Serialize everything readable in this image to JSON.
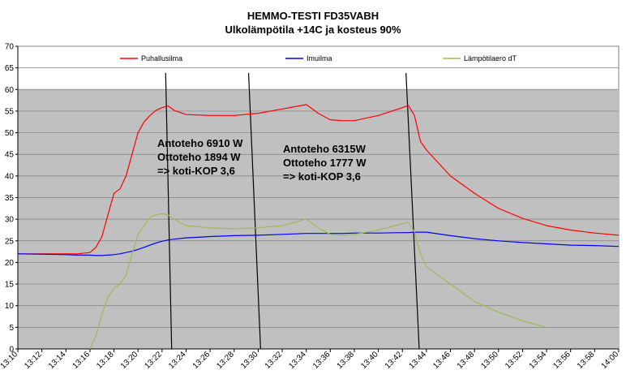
{
  "chart_data": {
    "type": "line",
    "title": "HEMMO-TESTI FD35VABH",
    "subtitle": "Ulkolämpötila  +14C ja kosteus 90%",
    "xlabel": "",
    "ylabel": "",
    "ylim": [
      0,
      70
    ],
    "yticks": [
      0,
      5,
      10,
      15,
      20,
      25,
      30,
      35,
      40,
      45,
      50,
      55,
      60,
      65,
      70
    ],
    "xticks": [
      "13:10",
      "13:12",
      "13:14",
      "13:16",
      "13:18",
      "13:20",
      "13:22",
      "13:24",
      "13:26",
      "13:28",
      "13:30",
      "13:32",
      "13:34",
      "13:36",
      "13:38",
      "13:40",
      "13:42",
      "13:44",
      "13:46",
      "13:48",
      "13:50",
      "13:52",
      "13:54",
      "13:56",
      "13:58",
      "14:00"
    ],
    "grid": true,
    "legend_position": "top",
    "x": [
      "13:10",
      "13:12",
      "13:14",
      "13:15",
      "13:16",
      "13:16.5",
      "13:17",
      "13:17.5",
      "13:18",
      "13:18.5",
      "13:19",
      "13:19.5",
      "13:20",
      "13:20.5",
      "13:21",
      "13:21.5",
      "13:22",
      "13:22.5",
      "13:23",
      "13:24",
      "13:26",
      "13:28",
      "13:30",
      "13:32",
      "13:34",
      "13:35",
      "13:36",
      "13:37",
      "13:38",
      "13:40",
      "13:42",
      "13:42.5",
      "13:43",
      "13:43.5",
      "13:44",
      "13:46",
      "13:48",
      "13:50",
      "13:52",
      "13:54",
      "13:56",
      "13:58",
      "14:00"
    ],
    "series": [
      {
        "name": "Puhallusilma",
        "color": "#ff0000",
        "values": [
          22,
          22,
          22,
          22,
          22.3,
          23.5,
          26,
          31,
          36,
          37,
          40,
          45,
          50,
          52.5,
          54,
          55.2,
          55.8,
          56.2,
          55.2,
          54.2,
          54,
          54,
          54.5,
          55.5,
          56.5,
          54.5,
          53,
          52.8,
          52.8,
          54,
          55.8,
          56.3,
          54,
          48,
          46,
          40,
          36,
          32.5,
          30.2,
          28.5,
          27.5,
          26.8,
          26.3
        ]
      },
      {
        "name": "Imuilma",
        "color": "#0000ff",
        "values": [
          22,
          21.9,
          21.8,
          21.7,
          21.7,
          21.6,
          21.6,
          21.7,
          21.8,
          22,
          22.3,
          22.6,
          23,
          23.5,
          24,
          24.5,
          24.9,
          25.2,
          25.4,
          25.7,
          26,
          26.2,
          26.3,
          26.5,
          26.7,
          26.7,
          26.7,
          26.7,
          26.8,
          26.8,
          26.9,
          26.9,
          27,
          27,
          27,
          26.2,
          25.5,
          25,
          24.6,
          24.3,
          24,
          23.9,
          23.7
        ]
      },
      {
        "name": "Lämpötilaero dT",
        "color": "#9bbb59",
        "values": [
          null,
          null,
          null,
          null,
          0,
          3,
          8,
          12,
          14,
          15,
          17,
          22,
          26.5,
          28.5,
          30.5,
          31,
          31.3,
          31,
          30,
          28.5,
          28,
          27.8,
          28,
          28.5,
          30,
          28,
          26.5,
          26.3,
          26.5,
          27.5,
          29,
          29.3,
          27,
          22,
          19,
          15,
          11,
          8.5,
          6.5,
          5,
          null,
          null,
          null
        ]
      }
    ],
    "annotations": [
      {
        "lines": [
          "Antoteho 6910 W",
          "Ottoteho 1894 W",
          "=> koti-KOP 3,6"
        ]
      },
      {
        "lines": [
          "Antoteho 6315W",
          "Ottoteho 1777 W",
          "=> koti-KOP 3,6"
        ]
      }
    ]
  }
}
